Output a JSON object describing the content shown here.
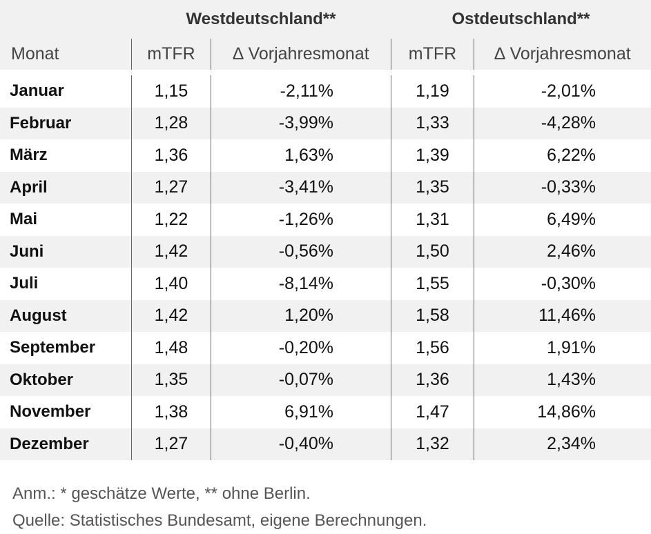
{
  "groups": {
    "west": "Westdeutschland**",
    "east": "Ostdeutschland**"
  },
  "columns": {
    "month": "Monat",
    "west_mtfr": "mTFR",
    "west_delta": "∆ Vorjahresmonat",
    "east_mtfr": "mTFR",
    "east_delta": "∆ Vorjahresmonat"
  },
  "rows": [
    {
      "month": "Januar",
      "west_mtfr": "1,15",
      "west_delta": "-2,11%",
      "east_mtfr": "1,19",
      "east_delta": "-2,01%"
    },
    {
      "month": "Februar",
      "west_mtfr": "1,28",
      "west_delta": "-3,99%",
      "east_mtfr": "1,33",
      "east_delta": "-4,28%"
    },
    {
      "month": "März",
      "west_mtfr": "1,36",
      "west_delta": "1,63%",
      "east_mtfr": "1,39",
      "east_delta": "6,22%"
    },
    {
      "month": "April",
      "west_mtfr": "1,27",
      "west_delta": "-3,41%",
      "east_mtfr": "1,35",
      "east_delta": "-0,33%"
    },
    {
      "month": "Mai",
      "west_mtfr": "1,22",
      "west_delta": "-1,26%",
      "east_mtfr": "1,31",
      "east_delta": "6,49%"
    },
    {
      "month": "Juni",
      "west_mtfr": "1,42",
      "west_delta": "-0,56%",
      "east_mtfr": "1,50",
      "east_delta": "2,46%"
    },
    {
      "month": "Juli",
      "west_mtfr": "1,40",
      "west_delta": "-8,14%",
      "east_mtfr": "1,55",
      "east_delta": "-0,30%"
    },
    {
      "month": "August",
      "west_mtfr": "1,42",
      "west_delta": "1,20%",
      "east_mtfr": "1,58",
      "east_delta": "11,46%"
    },
    {
      "month": "September",
      "west_mtfr": "1,48",
      "west_delta": "-0,20%",
      "east_mtfr": "1,56",
      "east_delta": "1,91%"
    },
    {
      "month": "Oktober",
      "west_mtfr": "1,35",
      "west_delta": "-0,07%",
      "east_mtfr": "1,36",
      "east_delta": "1,43%"
    },
    {
      "month": "November",
      "west_mtfr": "1,38",
      "west_delta": "6,91%",
      "east_mtfr": "1,47",
      "east_delta": "14,86%"
    },
    {
      "month": "Dezember",
      "west_mtfr": "1,27",
      "west_delta": "-0,40%",
      "east_mtfr": "1,32",
      "east_delta": "2,34%"
    }
  ],
  "notes": {
    "annotation": "Anm.: * geschätze Werte, ** ohne Berlin.",
    "source": "Quelle: Statistisches Bundesamt, eigene Berechnungen."
  },
  "colors": {
    "header_background": "#f1f1f1",
    "shaded_row": "#f1f1f1",
    "separator": "#666666"
  }
}
